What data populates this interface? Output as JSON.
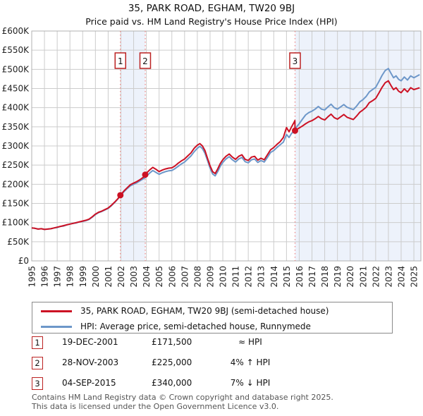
{
  "title": "35, PARK ROAD, EGHAM, TW20 9BJ",
  "subtitle": "Price paid vs. HM Land Registry's House Price Index (HPI)",
  "chart_data": {
    "type": "line",
    "title": "35, PARK ROAD, EGHAM, TW20 9BJ",
    "subtitle": "Price paid vs. HM Land Registry's House Price Index (HPI)",
    "grid": true,
    "legend_position": "bottom",
    "x_axis": {
      "tick_labels": [
        "1995",
        "1996",
        "1997",
        "1998",
        "1999",
        "2000",
        "2001",
        "2002",
        "2003",
        "2004",
        "2005",
        "2006",
        "2007",
        "2008",
        "2009",
        "2010",
        "2011",
        "2012",
        "2013",
        "2014",
        "2015",
        "2016",
        "2017",
        "2018",
        "2019",
        "2020",
        "2021",
        "2022",
        "2023",
        "2024",
        "2025"
      ],
      "range_years": [
        1995,
        2025.55
      ]
    },
    "y_axis": {
      "tick_values_k": [
        0,
        50,
        100,
        150,
        200,
        250,
        300,
        350,
        400,
        450,
        500,
        550,
        600
      ],
      "tick_labels": [
        "£0",
        "£50K",
        "£100K",
        "£150K",
        "£200K",
        "£250K",
        "£300K",
        "£350K",
        "£400K",
        "£450K",
        "£500K",
        "£550K",
        "£600K"
      ],
      "range_k": [
        0,
        600
      ]
    },
    "colors": {
      "property": "#cc1124",
      "hpi": "#6d97c9",
      "band": "#edf2fb",
      "grid": "#cccccc",
      "plot_border": "#b0b0b0",
      "sale_line": "#ef8383",
      "marker_border": "#bb2222"
    },
    "series": [
      {
        "id": "hpi",
        "name": "HPI: Average price, semi-detached house, Runnymede",
        "color": "#6d97c9",
        "points_year_value_k": [
          [
            1995.0,
            86
          ],
          [
            1995.25,
            85
          ],
          [
            1995.5,
            83
          ],
          [
            1995.75,
            84
          ],
          [
            1996.0,
            82
          ],
          [
            1996.25,
            83
          ],
          [
            1996.5,
            84
          ],
          [
            1996.75,
            86
          ],
          [
            1997.0,
            87
          ],
          [
            1997.25,
            90
          ],
          [
            1997.5,
            91
          ],
          [
            1997.75,
            94
          ],
          [
            1998.0,
            96
          ],
          [
            1998.25,
            98
          ],
          [
            1998.5,
            99
          ],
          [
            1998.75,
            102
          ],
          [
            1999.0,
            103
          ],
          [
            1999.25,
            105
          ],
          [
            1999.5,
            108
          ],
          [
            1999.75,
            114
          ],
          [
            2000.0,
            121
          ],
          [
            2000.25,
            126
          ],
          [
            2000.5,
            129
          ],
          [
            2000.75,
            133
          ],
          [
            2001.0,
            137
          ],
          [
            2001.25,
            144
          ],
          [
            2001.5,
            152
          ],
          [
            2001.75,
            161
          ],
          [
            2001.96,
            170
          ],
          [
            2002.25,
            181
          ],
          [
            2002.5,
            189
          ],
          [
            2002.75,
            196
          ],
          [
            2003.0,
            200
          ],
          [
            2003.25,
            204
          ],
          [
            2003.5,
            209
          ],
          [
            2003.75,
            214
          ],
          [
            2003.91,
            217
          ],
          [
            2004.0,
            221
          ],
          [
            2004.25,
            229
          ],
          [
            2004.5,
            236
          ],
          [
            2004.75,
            231
          ],
          [
            2005.0,
            226
          ],
          [
            2005.25,
            230
          ],
          [
            2005.5,
            233
          ],
          [
            2005.75,
            235
          ],
          [
            2006.0,
            236
          ],
          [
            2006.25,
            241
          ],
          [
            2006.5,
            247
          ],
          [
            2006.75,
            253
          ],
          [
            2007.0,
            258
          ],
          [
            2007.25,
            266
          ],
          [
            2007.5,
            274
          ],
          [
            2007.75,
            285
          ],
          [
            2008.0,
            294
          ],
          [
            2008.2,
            299
          ],
          [
            2008.4,
            293
          ],
          [
            2008.6,
            281
          ],
          [
            2008.8,
            262
          ],
          [
            2009.0,
            242
          ],
          [
            2009.2,
            227
          ],
          [
            2009.4,
            222
          ],
          [
            2009.6,
            233
          ],
          [
            2009.8,
            247
          ],
          [
            2010.0,
            257
          ],
          [
            2010.25,
            266
          ],
          [
            2010.5,
            272
          ],
          [
            2010.75,
            264
          ],
          [
            2011.0,
            258
          ],
          [
            2011.25,
            266
          ],
          [
            2011.5,
            270
          ],
          [
            2011.75,
            259
          ],
          [
            2012.0,
            256
          ],
          [
            2012.25,
            264
          ],
          [
            2012.5,
            266
          ],
          [
            2012.75,
            257
          ],
          [
            2013.0,
            262
          ],
          [
            2013.25,
            258
          ],
          [
            2013.5,
            270
          ],
          [
            2013.75,
            283
          ],
          [
            2014.0,
            288
          ],
          [
            2014.25,
            296
          ],
          [
            2014.5,
            303
          ],
          [
            2014.75,
            310
          ],
          [
            2014.9,
            322
          ],
          [
            2015.0,
            330
          ],
          [
            2015.2,
            322
          ],
          [
            2015.4,
            333
          ],
          [
            2015.67,
            340
          ],
          [
            2015.8,
            350
          ],
          [
            2016.0,
            358
          ],
          [
            2016.25,
            370
          ],
          [
            2016.5,
            381
          ],
          [
            2016.75,
            387
          ],
          [
            2017.0,
            391
          ],
          [
            2017.25,
            396
          ],
          [
            2017.5,
            403
          ],
          [
            2017.75,
            396
          ],
          [
            2018.0,
            394
          ],
          [
            2018.25,
            402
          ],
          [
            2018.5,
            409
          ],
          [
            2018.75,
            400
          ],
          [
            2019.0,
            396
          ],
          [
            2019.25,
            402
          ],
          [
            2019.5,
            408
          ],
          [
            2019.75,
            401
          ],
          [
            2020.0,
            398
          ],
          [
            2020.25,
            395
          ],
          [
            2020.5,
            404
          ],
          [
            2020.75,
            415
          ],
          [
            2021.0,
            421
          ],
          [
            2021.25,
            429
          ],
          [
            2021.5,
            441
          ],
          [
            2021.75,
            447
          ],
          [
            2022.0,
            453
          ],
          [
            2022.25,
            468
          ],
          [
            2022.5,
            484
          ],
          [
            2022.75,
            497
          ],
          [
            2023.0,
            502
          ],
          [
            2023.2,
            490
          ],
          [
            2023.4,
            478
          ],
          [
            2023.6,
            483
          ],
          [
            2023.8,
            474
          ],
          [
            2024.0,
            470
          ],
          [
            2024.25,
            480
          ],
          [
            2024.5,
            472
          ],
          [
            2024.75,
            483
          ],
          [
            2025.0,
            478
          ],
          [
            2025.45,
            486
          ]
        ]
      },
      {
        "id": "property",
        "name": "35, PARK ROAD, EGHAM, TW20 9BJ (semi-detached house)",
        "color": "#cc1124",
        "points_year_value_k": [
          [
            1995.0,
            86
          ],
          [
            1995.25,
            85
          ],
          [
            1995.5,
            83
          ],
          [
            1995.75,
            84
          ],
          [
            1996.0,
            82
          ],
          [
            1996.25,
            83
          ],
          [
            1996.5,
            84
          ],
          [
            1996.75,
            86
          ],
          [
            1997.0,
            88
          ],
          [
            1997.25,
            90
          ],
          [
            1997.5,
            92
          ],
          [
            1997.75,
            94
          ],
          [
            1998.0,
            96
          ],
          [
            1998.25,
            98
          ],
          [
            1998.5,
            100
          ],
          [
            1998.75,
            102
          ],
          [
            1999.0,
            104
          ],
          [
            1999.25,
            106
          ],
          [
            1999.5,
            109
          ],
          [
            1999.75,
            115
          ],
          [
            2000.0,
            122
          ],
          [
            2000.25,
            127
          ],
          [
            2000.5,
            130
          ],
          [
            2000.75,
            134
          ],
          [
            2001.0,
            138
          ],
          [
            2001.25,
            145
          ],
          [
            2001.5,
            153
          ],
          [
            2001.75,
            162
          ],
          [
            2001.96,
            171.5
          ],
          [
            2002.25,
            183
          ],
          [
            2002.5,
            191
          ],
          [
            2002.75,
            199
          ],
          [
            2003.0,
            203
          ],
          [
            2003.25,
            207
          ],
          [
            2003.5,
            212
          ],
          [
            2003.75,
            218
          ],
          [
            2003.91,
            225
          ],
          [
            2004.0,
            229
          ],
          [
            2004.25,
            237
          ],
          [
            2004.5,
            244
          ],
          [
            2004.75,
            239
          ],
          [
            2005.0,
            233
          ],
          [
            2005.25,
            237
          ],
          [
            2005.5,
            240
          ],
          [
            2005.75,
            242
          ],
          [
            2006.0,
            243
          ],
          [
            2006.25,
            248
          ],
          [
            2006.5,
            255
          ],
          [
            2006.75,
            261
          ],
          [
            2007.0,
            266
          ],
          [
            2007.25,
            274
          ],
          [
            2007.5,
            282
          ],
          [
            2007.75,
            294
          ],
          [
            2008.0,
            302
          ],
          [
            2008.2,
            306
          ],
          [
            2008.4,
            300
          ],
          [
            2008.6,
            288
          ],
          [
            2008.8,
            268
          ],
          [
            2009.0,
            248
          ],
          [
            2009.2,
            233
          ],
          [
            2009.4,
            228
          ],
          [
            2009.6,
            240
          ],
          [
            2009.8,
            254
          ],
          [
            2010.0,
            264
          ],
          [
            2010.25,
            273
          ],
          [
            2010.5,
            279
          ],
          [
            2010.75,
            271
          ],
          [
            2011.0,
            265
          ],
          [
            2011.25,
            273
          ],
          [
            2011.5,
            277
          ],
          [
            2011.75,
            265
          ],
          [
            2012.0,
            262
          ],
          [
            2012.25,
            271
          ],
          [
            2012.5,
            273
          ],
          [
            2012.75,
            263
          ],
          [
            2013.0,
            268
          ],
          [
            2013.25,
            264
          ],
          [
            2013.5,
            277
          ],
          [
            2013.75,
            290
          ],
          [
            2014.0,
            296
          ],
          [
            2014.25,
            304
          ],
          [
            2014.5,
            311
          ],
          [
            2014.75,
            322
          ],
          [
            2014.9,
            338
          ],
          [
            2015.0,
            348
          ],
          [
            2015.2,
            337
          ],
          [
            2015.4,
            350
          ],
          [
            2015.6,
            362
          ],
          [
            2015.66,
            366
          ],
          [
            2015.67,
            340
          ],
          [
            2015.8,
            343
          ],
          [
            2016.0,
            347
          ],
          [
            2016.25,
            352
          ],
          [
            2016.5,
            358
          ],
          [
            2016.75,
            363
          ],
          [
            2017.0,
            366
          ],
          [
            2017.25,
            371
          ],
          [
            2017.5,
            377
          ],
          [
            2017.75,
            371
          ],
          [
            2018.0,
            368
          ],
          [
            2018.25,
            376
          ],
          [
            2018.5,
            383
          ],
          [
            2018.75,
            374
          ],
          [
            2019.0,
            370
          ],
          [
            2019.25,
            376
          ],
          [
            2019.5,
            382
          ],
          [
            2019.75,
            375
          ],
          [
            2020.0,
            372
          ],
          [
            2020.25,
            369
          ],
          [
            2020.5,
            378
          ],
          [
            2020.75,
            388
          ],
          [
            2021.0,
            394
          ],
          [
            2021.25,
            401
          ],
          [
            2021.5,
            413
          ],
          [
            2021.75,
            418
          ],
          [
            2022.0,
            424
          ],
          [
            2022.25,
            438
          ],
          [
            2022.5,
            453
          ],
          [
            2022.75,
            465
          ],
          [
            2023.0,
            470
          ],
          [
            2023.2,
            458
          ],
          [
            2023.4,
            447
          ],
          [
            2023.6,
            452
          ],
          [
            2023.8,
            443
          ],
          [
            2024.0,
            439
          ],
          [
            2024.25,
            449
          ],
          [
            2024.5,
            441
          ],
          [
            2024.75,
            452
          ],
          [
            2025.0,
            447
          ],
          [
            2025.45,
            452
          ]
        ]
      }
    ],
    "sale_markers": [
      {
        "num": "1",
        "year": 2001.96,
        "price_k": 171.5
      },
      {
        "num": "2",
        "year": 2003.91,
        "price_k": 225
      },
      {
        "num": "3",
        "year": 2015.67,
        "price_k": 340
      }
    ],
    "shaded_bands_years": [
      [
        2001.96,
        2003.91
      ],
      [
        2015.67,
        2025.55
      ]
    ]
  },
  "legend": {
    "items": [
      {
        "label": "35, PARK ROAD, EGHAM, TW20 9BJ (semi-detached house)",
        "color": "#cc1124"
      },
      {
        "label": "HPI: Average price, semi-detached house, Runnymede",
        "color": "#6d97c9"
      }
    ]
  },
  "table": {
    "rows": [
      {
        "num": "1",
        "date": "19-DEC-2001",
        "price": "£171,500",
        "hpi_relation": "≈ HPI"
      },
      {
        "num": "2",
        "date": "28-NOV-2003",
        "price": "£225,000",
        "hpi_relation": "4% ↑ HPI"
      },
      {
        "num": "3",
        "date": "04-SEP-2015",
        "price": "£340,000",
        "hpi_relation": "7% ↓ HPI"
      }
    ]
  },
  "footer": {
    "line1": "Contains HM Land Registry data © Crown copyright and database right 2025.",
    "line2": "This data is licensed under the Open Government Licence v3.0."
  }
}
